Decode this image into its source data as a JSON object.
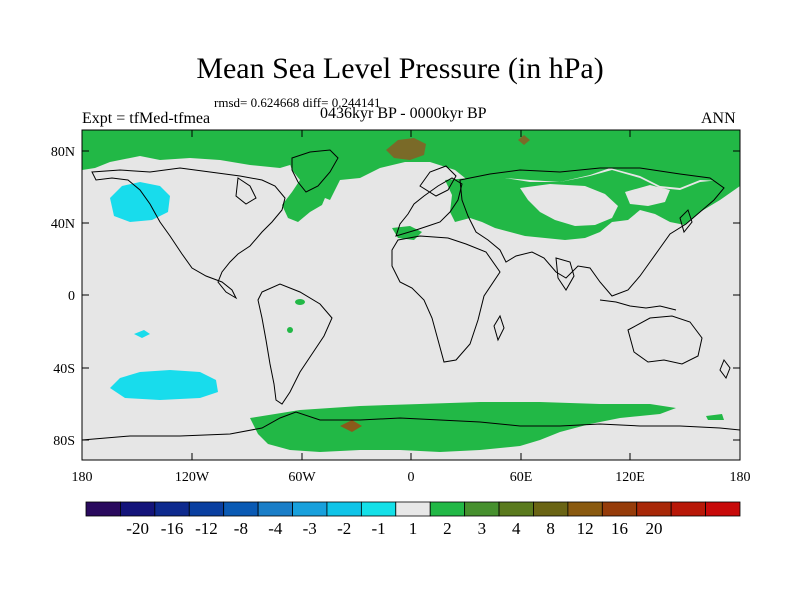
{
  "title": "Mean Sea Level Pressure (in hPa)",
  "stats": "rmsd= 0.624668 diff= 0.244141",
  "experiment": "Expt = tfMed-tfmea",
  "period": "0436kyr BP - 0000kyr BP",
  "season": "ANN",
  "lat_labels": [
    "80N",
    "40N",
    "0",
    "40S",
    "80S"
  ],
  "lon_labels": [
    "180",
    "120W",
    "60W",
    "0",
    "60E",
    "120E",
    "180"
  ],
  "colorbar": {
    "colors": [
      "#2a0a5e",
      "#14147a",
      "#0e2a8e",
      "#0a3fa0",
      "#0a5ab4",
      "#1a7ec8",
      "#18a0dc",
      "#10c4e8",
      "#14e0e8",
      "#e8e8e8",
      "#22b846",
      "#46902e",
      "#5a7a1e",
      "#6a6414",
      "#8a5a10",
      "#963c0a",
      "#a82808",
      "#b81808",
      "#c80a0a"
    ],
    "labels": [
      "-20",
      "-16",
      "-12",
      "-8",
      "-4",
      "-3",
      "-2",
      "-1",
      "1",
      "2",
      "3",
      "4",
      "8",
      "12",
      "16",
      "20"
    ]
  },
  "colors": {
    "background": "#e6e6e6",
    "positive_green": "#22b846",
    "brown": "#8a6a28",
    "cyan": "#18dcec"
  }
}
